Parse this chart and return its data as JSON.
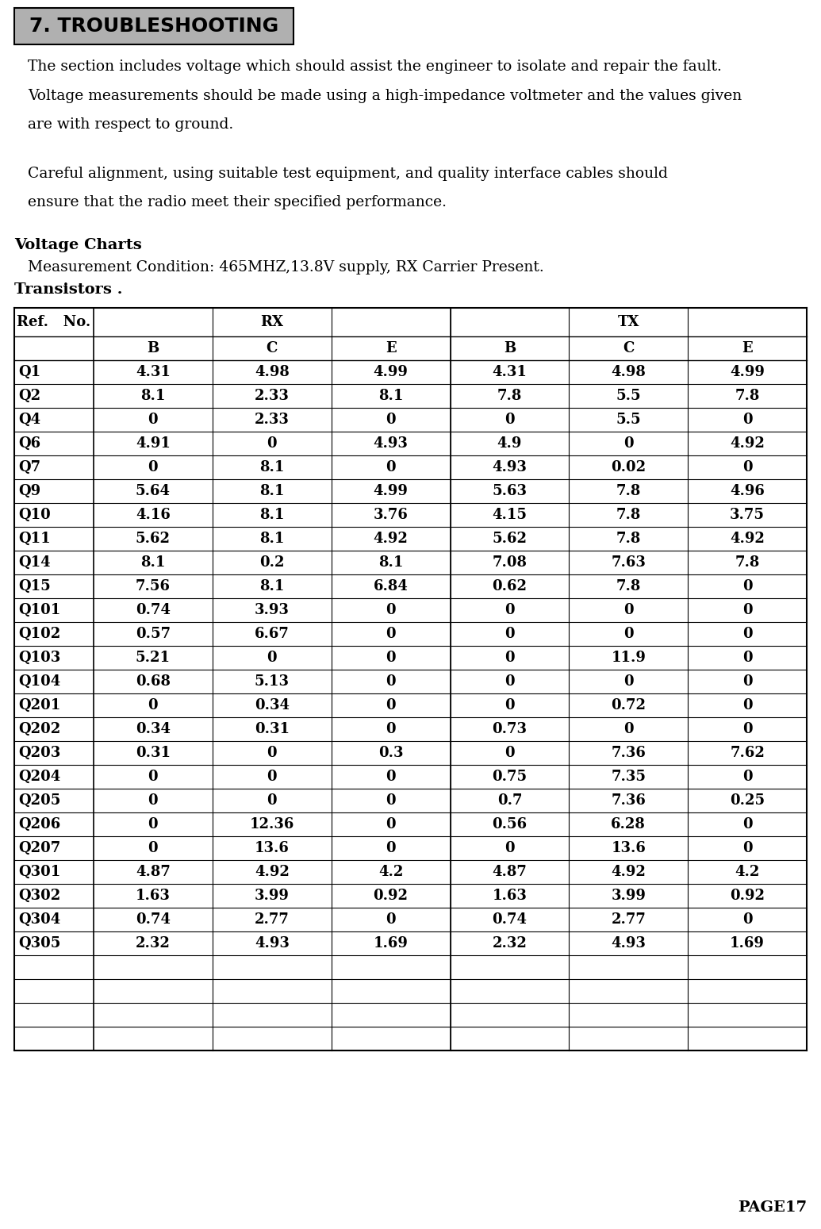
{
  "title": "7. TROUBLESHOOTING",
  "para1": "The section includes voltage which should assist the engineer to isolate and repair the fault.",
  "para2a": "Voltage measurements should be made using a high-impedance voltmeter and the values given",
  "para2b": "are with respect to ground.",
  "para3a": "Careful alignment, using suitable test equipment, and quality interface cables should",
  "para3b": "ensure that the radio meet their specified performance.",
  "section_title": "Voltage Charts",
  "meas_cond": "Measurement Condition: 465MHZ,13.8V supply, RX Carrier Present.",
  "transistors_label": "Transistors .",
  "rows": [
    [
      "Q1",
      "4.31",
      "4.98",
      "4.99",
      "4.31",
      "4.98",
      "4.99"
    ],
    [
      "Q2",
      "8.1",
      "2.33",
      "8.1",
      "7.8",
      "5.5",
      "7.8"
    ],
    [
      "Q4",
      "0",
      "2.33",
      "0",
      "0",
      "5.5",
      "0"
    ],
    [
      "Q6",
      "4.91",
      "0",
      "4.93",
      "4.9",
      "0",
      "4.92"
    ],
    [
      "Q7",
      "0",
      "8.1",
      "0",
      "4.93",
      "0.02",
      "0"
    ],
    [
      "Q9",
      "5.64",
      "8.1",
      "4.99",
      "5.63",
      "7.8",
      "4.96"
    ],
    [
      "Q10",
      "4.16",
      "8.1",
      "3.76",
      "4.15",
      "7.8",
      "3.75"
    ],
    [
      "Q11",
      "5.62",
      "8.1",
      "4.92",
      "5.62",
      "7.8",
      "4.92"
    ],
    [
      "Q14",
      "8.1",
      "0.2",
      "8.1",
      "7.08",
      "7.63",
      "7.8"
    ],
    [
      "Q15",
      "7.56",
      "8.1",
      "6.84",
      "0.62",
      "7.8",
      "0"
    ],
    [
      "Q101",
      "0.74",
      "3.93",
      "0",
      "0",
      "0",
      "0"
    ],
    [
      "Q102",
      "0.57",
      "6.67",
      "0",
      "0",
      "0",
      "0"
    ],
    [
      "Q103",
      "5.21",
      "0",
      "0",
      "0",
      "11.9",
      "0"
    ],
    [
      "Q104",
      "0.68",
      "5.13",
      "0",
      "0",
      "0",
      "0"
    ],
    [
      "Q201",
      "0",
      "0.34",
      "0",
      "0",
      "0.72",
      "0"
    ],
    [
      "Q202",
      "0.34",
      "0.31",
      "0",
      "0.73",
      "0",
      "0"
    ],
    [
      "Q203",
      "0.31",
      "0",
      "0.3",
      "0",
      "7.36",
      "7.62"
    ],
    [
      "Q204",
      "0",
      "0",
      "0",
      "0.75",
      "7.35",
      "0"
    ],
    [
      "Q205",
      "0",
      "0",
      "0",
      "0.7",
      "7.36",
      "0.25"
    ],
    [
      "Q206",
      "0",
      "12.36",
      "0",
      "0.56",
      "6.28",
      "0"
    ],
    [
      "Q207",
      "0",
      "13.6",
      "0",
      "0",
      "13.6",
      "0"
    ],
    [
      "Q301",
      "4.87",
      "4.92",
      "4.2",
      "4.87",
      "4.92",
      "4.2"
    ],
    [
      "Q302",
      "1.63",
      "3.99",
      "0.92",
      "1.63",
      "3.99",
      "0.92"
    ],
    [
      "Q304",
      "0.74",
      "2.77",
      "0",
      "0.74",
      "2.77",
      "0"
    ],
    [
      "Q305",
      "2.32",
      "4.93",
      "1.69",
      "2.32",
      "4.93",
      "1.69"
    ],
    [
      "",
      "",
      "",
      "",
      "",
      "",
      ""
    ],
    [
      "",
      "",
      "",
      "",
      "",
      "",
      ""
    ],
    [
      "",
      "",
      "",
      "",
      "",
      "",
      ""
    ],
    [
      "",
      "",
      "",
      "",
      "",
      "",
      ""
    ]
  ],
  "page_label": "PAGE17",
  "bg_color": "#ffffff",
  "title_bg": "#b0b0b0"
}
